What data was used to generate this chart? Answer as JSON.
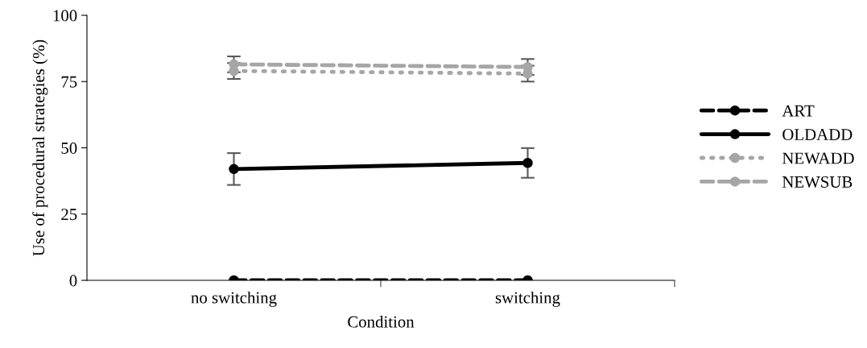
{
  "chart_data": {
    "type": "line",
    "xlabel": "Condition",
    "ylabel": "Use of procedural strategies (%)",
    "categories": [
      "no switching",
      "switching"
    ],
    "ylim": [
      0,
      100
    ],
    "yticks": [
      0,
      25,
      50,
      75,
      100
    ],
    "grid": false,
    "legend": "right",
    "marker": "circle",
    "series": [
      {
        "name": "ART",
        "color": "#000000",
        "values": [
          0,
          0
        ],
        "line_style": "dashed"
      },
      {
        "name": "OLDADD",
        "color": "#000000",
        "values": [
          42,
          44.3
        ],
        "errors": [
          6,
          5.6
        ],
        "line_style": "solid"
      },
      {
        "name": "NEWADD",
        "color": "#a6a6a6",
        "values": [
          79,
          78
        ],
        "errors": [
          3,
          3
        ],
        "line_style": "dotted"
      },
      {
        "name": "NEWSUB",
        "color": "#a6a6a6",
        "values": [
          81.5,
          80.5
        ],
        "errors": [
          3,
          3
        ],
        "line_style": "dashed"
      }
    ]
  }
}
